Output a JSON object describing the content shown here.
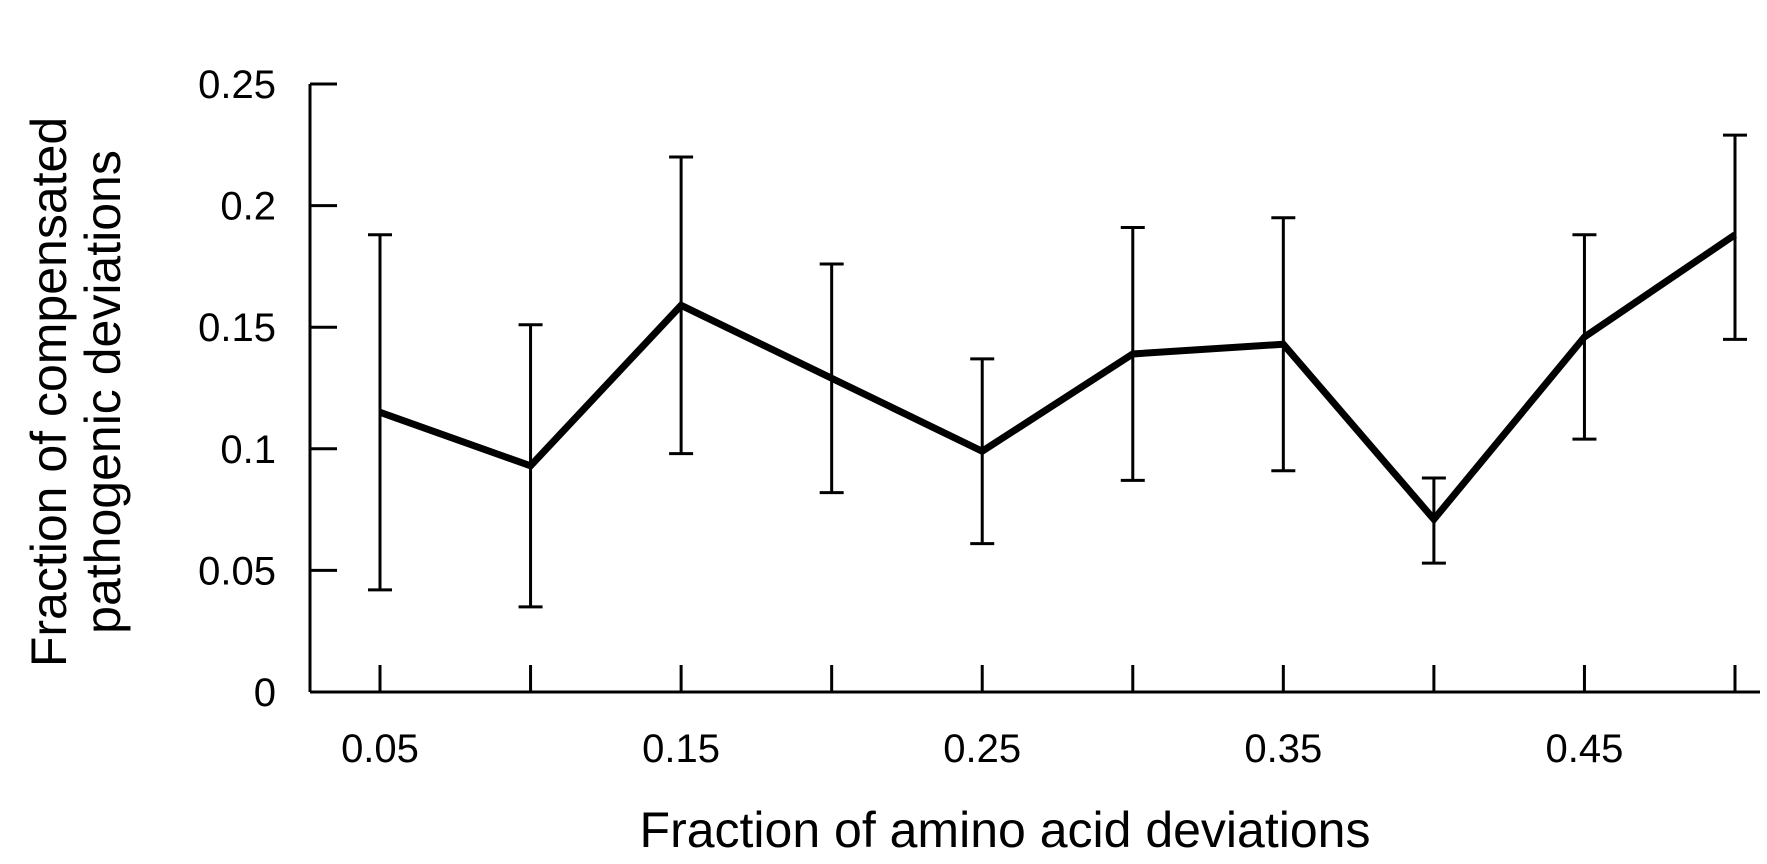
{
  "chart_data": {
    "type": "line",
    "xlabel": "Fraction of amino acid deviations",
    "ylabel_lines": [
      "Fraction of compensated",
      "pathogenic deviations"
    ],
    "xlim": [
      0.05,
      0.5
    ],
    "ylim": [
      0,
      0.25
    ],
    "x_ticks": [
      0.05,
      0.1,
      0.15,
      0.2,
      0.25,
      0.3,
      0.35,
      0.4,
      0.45,
      0.5
    ],
    "x_tick_labels": [
      "0.05",
      "0.15",
      "0.25",
      "0.35",
      "0.45"
    ],
    "x_tick_label_values": [
      0.05,
      0.15,
      0.25,
      0.35,
      0.45
    ],
    "y_ticks": [
      0,
      0.05,
      0.1,
      0.15,
      0.2,
      0.25
    ],
    "y_tick_labels": [
      "0",
      "0.05",
      "0.1",
      "0.15",
      "0.2",
      "0.25"
    ],
    "grid": false,
    "series": [
      {
        "x": [
          0.05,
          0.1,
          0.15,
          0.2,
          0.25,
          0.3,
          0.35,
          0.4,
          0.45,
          0.5
        ],
        "y": [
          0.115,
          0.093,
          0.159,
          0.129,
          0.099,
          0.139,
          0.143,
          0.071,
          0.146,
          0.188
        ],
        "error_low": [
          0.042,
          0.035,
          0.098,
          0.082,
          0.061,
          0.087,
          0.091,
          0.053,
          0.104,
          0.145
        ],
        "error_high": [
          0.188,
          0.151,
          0.22,
          0.176,
          0.137,
          0.191,
          0.195,
          0.088,
          0.188,
          0.229
        ],
        "color": "#000000"
      }
    ]
  }
}
